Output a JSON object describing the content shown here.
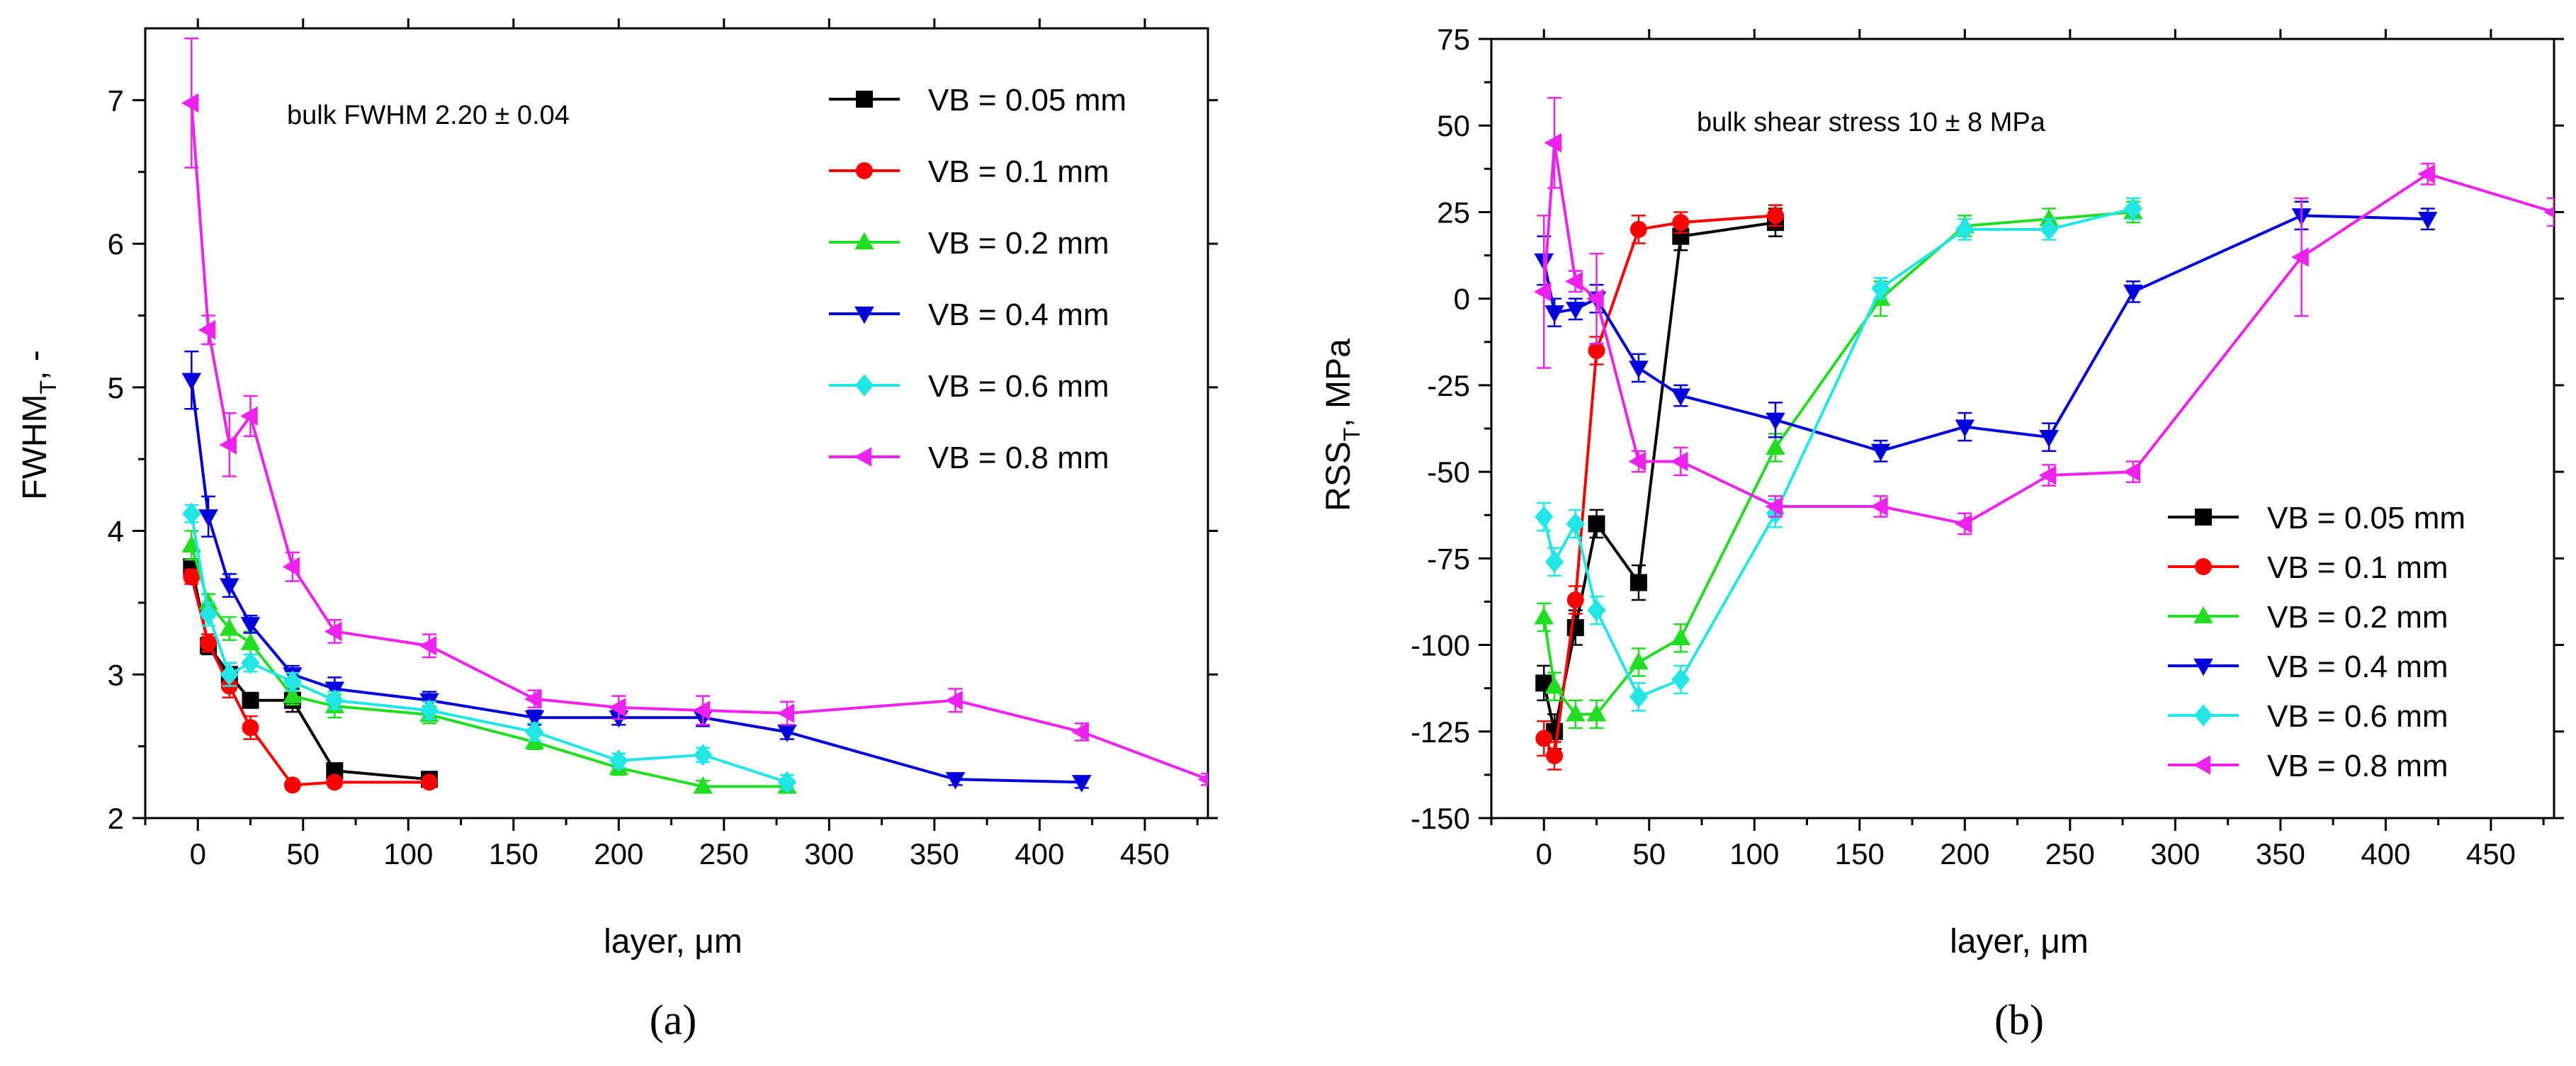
{
  "colors": {
    "VB = 0.05 mm": "#000000",
    "VB = 0.1 mm": "#ff0000",
    "VB = 0.2 mm": "#22dd22",
    "VB = 0.4 mm": "#0000dd",
    "VB = 0.6 mm": "#22e6e6",
    "VB = 0.8 mm": "#ee22ee"
  },
  "chart_data": [
    {
      "type": "line",
      "panel_label": "(a)",
      "xlabel": "layer, μm",
      "ylabel_main": "FWHM",
      "ylabel_sub": "T",
      "ylabel_tail": ", -",
      "annotation": "bulk FWHM 2.20 ± 0.04",
      "xlim": [
        -25,
        480
      ],
      "ylim": [
        2,
        7.5
      ],
      "xticks": [
        0,
        50,
        100,
        150,
        200,
        250,
        300,
        350,
        400,
        450
      ],
      "yticks": [
        2,
        3,
        4,
        5,
        6,
        7
      ],
      "legend_position": "top-right",
      "series": [
        {
          "name": "VB = 0.05 mm",
          "marker": "square",
          "x": [
            -3,
            5,
            15,
            25,
            45,
            65,
            110
          ],
          "y": [
            3.75,
            3.2,
            3.0,
            2.82,
            2.82,
            2.33,
            2.27
          ],
          "err": [
            0.05,
            0.06,
            0.08,
            0.05,
            0.08,
            0.05,
            0.04
          ]
        },
        {
          "name": "VB = 0.1 mm",
          "marker": "circle",
          "x": [
            -3,
            5,
            15,
            25,
            45,
            65,
            110
          ],
          "y": [
            3.68,
            3.22,
            2.92,
            2.63,
            2.23,
            2.25,
            2.25
          ],
          "err": [
            0.05,
            0.06,
            0.08,
            0.08,
            0.03,
            0.03,
            0.03
          ]
        },
        {
          "name": "VB = 0.2 mm",
          "marker": "triangle-up",
          "x": [
            -3,
            5,
            15,
            25,
            45,
            65,
            110,
            160,
            200,
            240,
            280
          ],
          "y": [
            3.9,
            3.5,
            3.32,
            3.22,
            2.85,
            2.78,
            2.72,
            2.53,
            2.35,
            2.22,
            2.22
          ],
          "err": [
            0.1,
            0.06,
            0.08,
            0.08,
            0.06,
            0.08,
            0.06,
            0.05,
            0.05,
            0.04,
            0.04
          ]
        },
        {
          "name": "VB = 0.4 mm",
          "marker": "triangle-down",
          "x": [
            -3,
            5,
            15,
            25,
            45,
            65,
            110,
            160,
            200,
            240,
            280,
            360,
            420
          ],
          "y": [
            5.05,
            4.1,
            3.62,
            3.35,
            3.0,
            2.9,
            2.82,
            2.7,
            2.7,
            2.7,
            2.6,
            2.27,
            2.25
          ],
          "err": [
            0.2,
            0.14,
            0.08,
            0.06,
            0.06,
            0.08,
            0.06,
            0.05,
            0.05,
            0.06,
            0.05,
            0.04,
            0.04
          ]
        },
        {
          "name": "VB = 0.6 mm",
          "marker": "diamond",
          "x": [
            -3,
            5,
            15,
            25,
            45,
            65,
            110,
            160,
            200,
            240,
            280
          ],
          "y": [
            4.12,
            3.42,
            3.0,
            3.08,
            2.95,
            2.82,
            2.75,
            2.6,
            2.4,
            2.44,
            2.25
          ],
          "err": [
            0.06,
            0.08,
            0.08,
            0.06,
            0.06,
            0.06,
            0.06,
            0.06,
            0.05,
            0.05,
            0.05
          ]
        },
        {
          "name": "VB = 0.8 mm",
          "marker": "triangle-left",
          "x": [
            -3,
            5,
            15,
            25,
            45,
            65,
            110,
            160,
            200,
            240,
            280,
            360,
            420,
            480
          ],
          "y": [
            6.98,
            5.4,
            4.6,
            4.8,
            3.75,
            3.3,
            3.2,
            2.83,
            2.77,
            2.75,
            2.73,
            2.82,
            2.6,
            2.27
          ],
          "err": [
            0.45,
            0.1,
            0.22,
            0.14,
            0.1,
            0.08,
            0.08,
            0.06,
            0.08,
            0.1,
            0.08,
            0.08,
            0.06,
            0.04
          ]
        }
      ]
    },
    {
      "type": "line",
      "panel_label": "(b)",
      "xlabel": "layer, μm",
      "ylabel_main": "RSS",
      "ylabel_sub": "T",
      "ylabel_tail": ", MPa",
      "annotation": "bulk shear stress 10 ± 8 MPa",
      "xlim": [
        -25,
        480
      ],
      "ylim": [
        -150,
        75
      ],
      "xticks": [
        0,
        50,
        100,
        150,
        200,
        250,
        300,
        350,
        400,
        450
      ],
      "yticks": [
        -150,
        -125,
        -100,
        -75,
        -50,
        -25,
        0,
        25,
        50,
        75
      ],
      "legend_position": "bottom-right",
      "series": [
        {
          "name": "VB = 0.05 mm",
          "marker": "square",
          "x": [
            0,
            5,
            15,
            25,
            45,
            65,
            110
          ],
          "y": [
            -111,
            -125,
            -95,
            -65,
            -82,
            18,
            22
          ],
          "err": [
            5,
            5,
            5,
            4,
            5,
            4,
            4
          ]
        },
        {
          "name": "VB = 0.1 mm",
          "marker": "circle",
          "x": [
            0,
            5,
            15,
            25,
            45,
            65,
            110
          ],
          "y": [
            -127,
            -132,
            -87,
            -15,
            20,
            22,
            24
          ],
          "err": [
            5,
            4,
            4,
            4,
            4,
            3,
            3
          ]
        },
        {
          "name": "VB = 0.2 mm",
          "marker": "triangle-up",
          "x": [
            0,
            5,
            15,
            25,
            45,
            65,
            110,
            160,
            200,
            240,
            280
          ],
          "y": [
            -92,
            -112,
            -120,
            -120,
            -105,
            -98,
            -43,
            0,
            21,
            23,
            25
          ],
          "err": [
            4,
            4,
            4,
            4,
            4,
            4,
            4,
            5,
            3,
            3,
            3
          ]
        },
        {
          "name": "VB = 0.4 mm",
          "marker": "triangle-down",
          "x": [
            0,
            5,
            15,
            25,
            45,
            65,
            110,
            160,
            200,
            240,
            280,
            360,
            420
          ],
          "y": [
            11,
            -4,
            -3,
            0,
            -20,
            -28,
            -35,
            -44,
            -37,
            -40,
            2,
            24,
            23
          ],
          "err": [
            7,
            4,
            3,
            4,
            4,
            3,
            5,
            3,
            4,
            4,
            3,
            4,
            3
          ]
        },
        {
          "name": "VB = 0.6 mm",
          "marker": "diamond",
          "x": [
            0,
            5,
            15,
            25,
            45,
            65,
            110,
            160,
            200,
            240,
            280
          ],
          "y": [
            -63,
            -76,
            -65,
            -90,
            -115,
            -110,
            -62,
            3,
            20,
            20,
            26
          ],
          "err": [
            4,
            4,
            4,
            4,
            4,
            4,
            4,
            3,
            3,
            3,
            3
          ]
        },
        {
          "name": "VB = 0.8 mm",
          "marker": "triangle-left",
          "x": [
            0,
            5,
            15,
            25,
            45,
            65,
            110,
            160,
            200,
            240,
            280,
            360,
            420,
            480
          ],
          "y": [
            2,
            45,
            5,
            0,
            -47,
            -47,
            -60,
            -60,
            -65,
            -51,
            -50,
            12,
            36,
            25
          ],
          "err": [
            22,
            13,
            3,
            13,
            3,
            4,
            3,
            3,
            3,
            3,
            3,
            17,
            3,
            4
          ]
        }
      ]
    }
  ]
}
